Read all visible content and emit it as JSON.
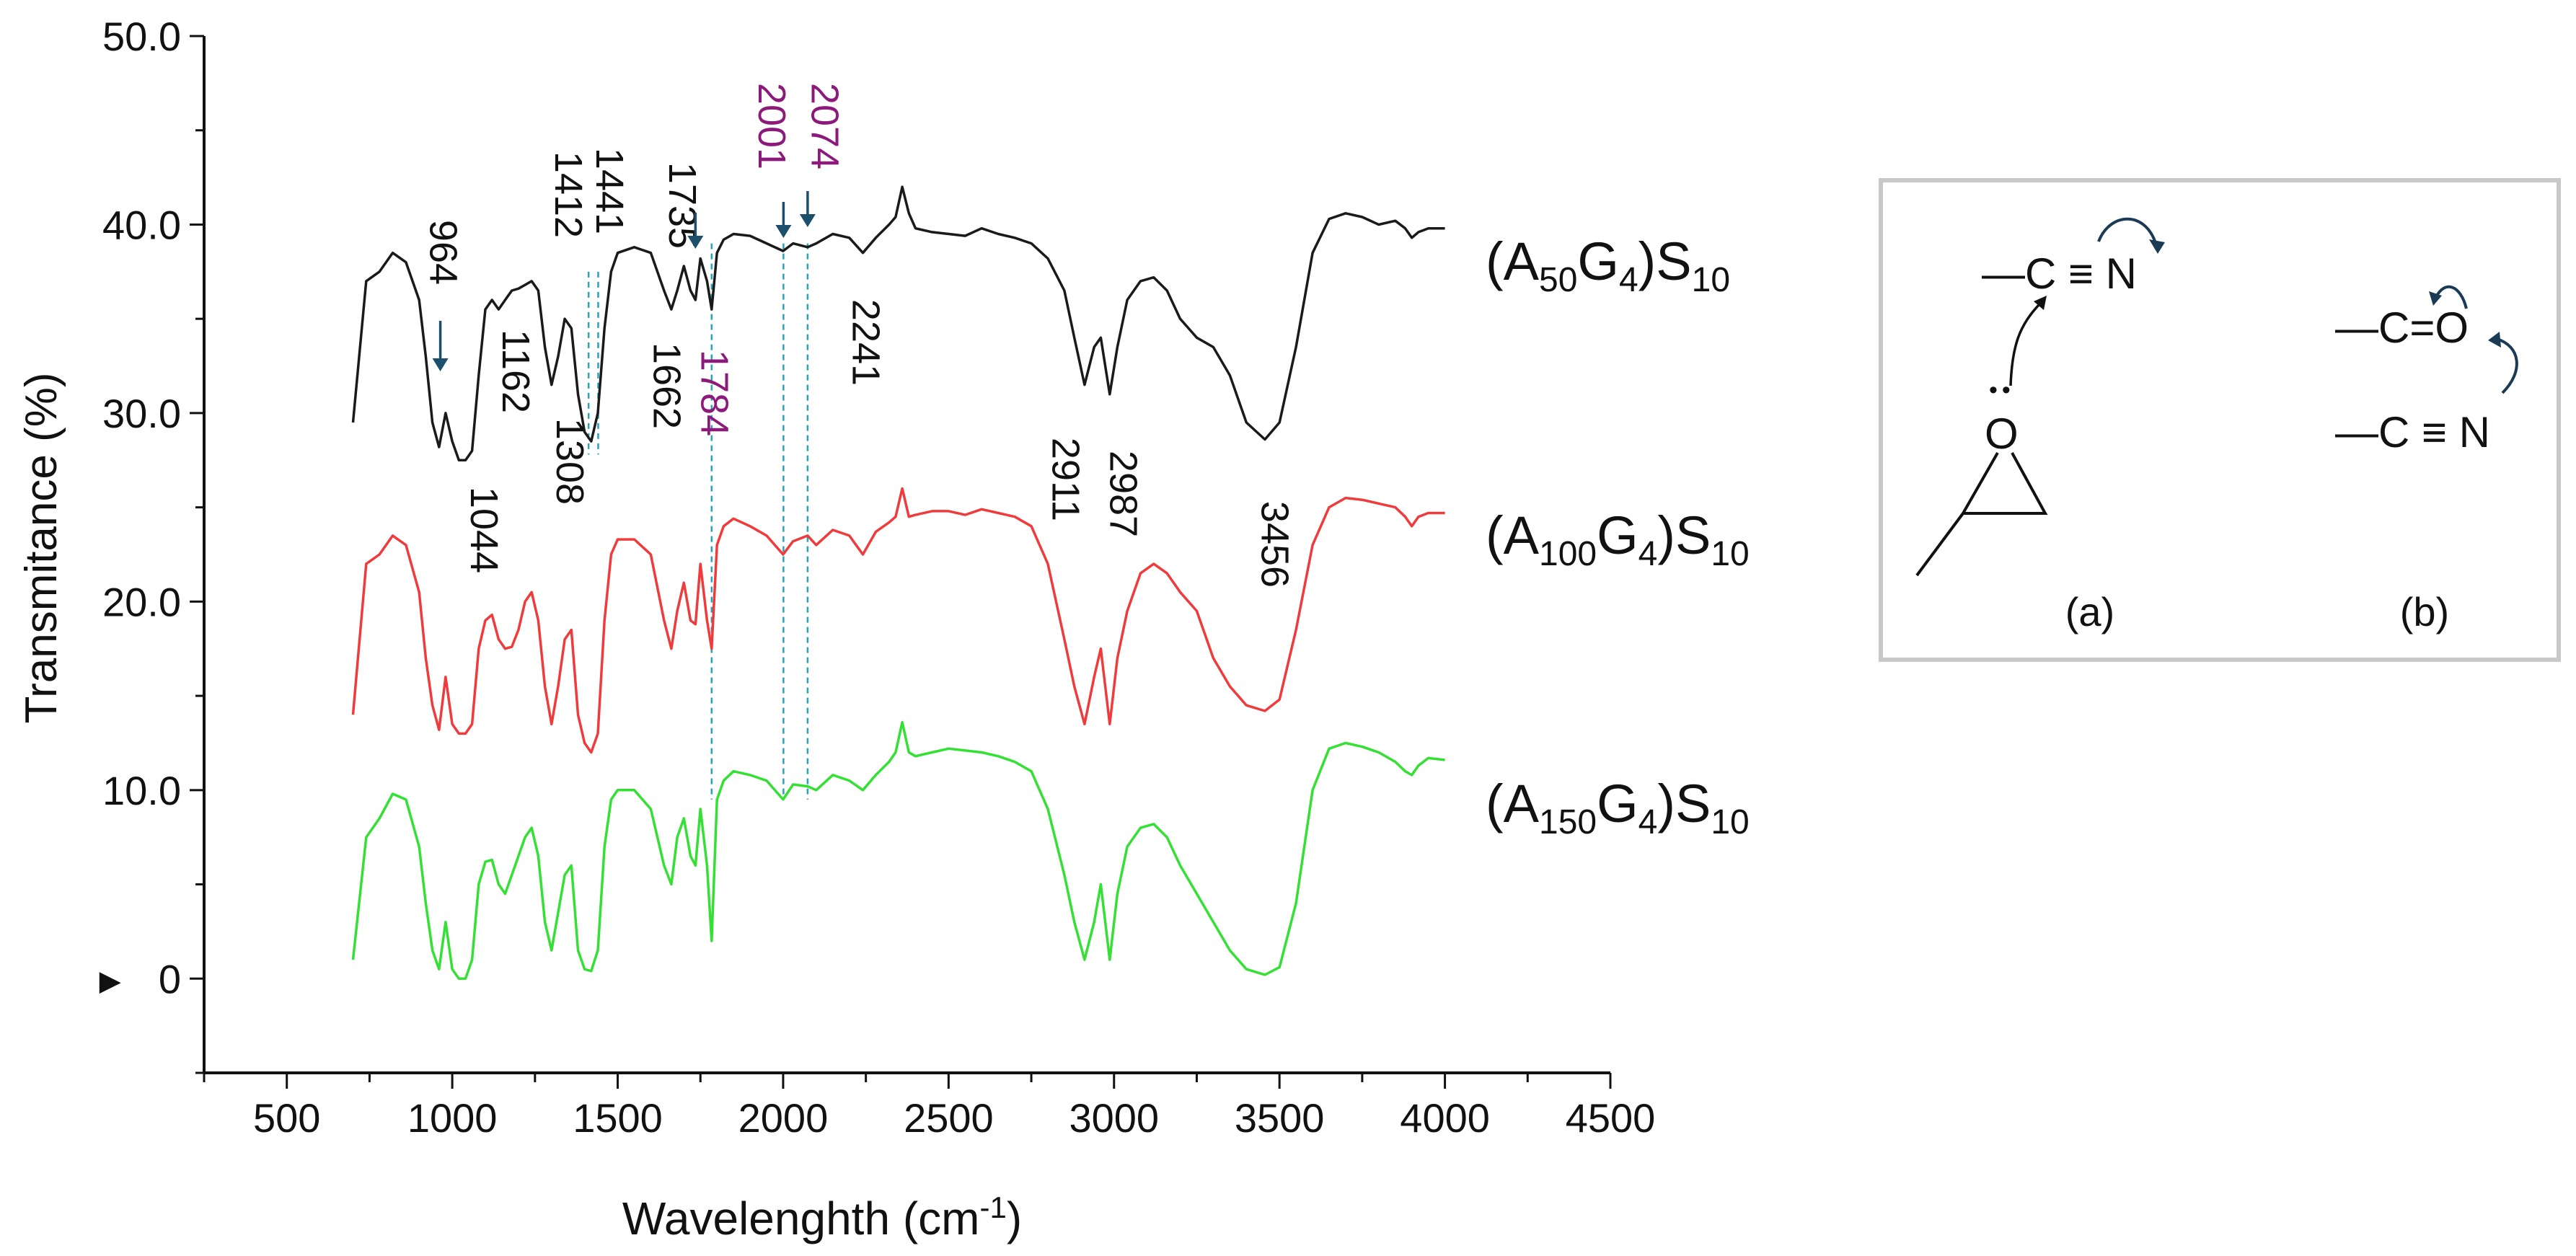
{
  "chart_data": {
    "type": "line",
    "title": "",
    "xlabel": "Wavelenghth (cm",
    "xlabel_sup": "-1",
    "xlabel_close": ")",
    "ylabel": "Transmitance (%)",
    "xlim": [
      250,
      4500
    ],
    "ylim": [
      -5,
      50
    ],
    "xticks": [
      500,
      1000,
      1500,
      2000,
      2500,
      3000,
      3500,
      4000,
      4500
    ],
    "yticks": [
      {
        "value": 50,
        "label": "50.0"
      },
      {
        "value": 40,
        "label": "40.0"
      },
      {
        "value": 30,
        "label": "30.0"
      },
      {
        "value": 20,
        "label": "20.0"
      },
      {
        "value": 10,
        "label": "10.0"
      },
      {
        "value": 0,
        "label": "0"
      }
    ],
    "zero_marker": "►",
    "x": [
      700,
      740,
      780,
      820,
      860,
      900,
      920,
      940,
      960,
      980,
      1000,
      1020,
      1040,
      1060,
      1080,
      1100,
      1120,
      1140,
      1160,
      1180,
      1200,
      1220,
      1240,
      1260,
      1280,
      1300,
      1320,
      1340,
      1360,
      1380,
      1400,
      1420,
      1440,
      1460,
      1480,
      1500,
      1550,
      1600,
      1640,
      1662,
      1680,
      1700,
      1720,
      1735,
      1750,
      1770,
      1784,
      1800,
      1820,
      1850,
      1900,
      1950,
      2000,
      2030,
      2074,
      2100,
      2150,
      2200,
      2241,
      2280,
      2320,
      2340,
      2360,
      2380,
      2400,
      2450,
      2500,
      2550,
      2600,
      2650,
      2700,
      2750,
      2800,
      2850,
      2880,
      2911,
      2940,
      2960,
      2987,
      3010,
      3040,
      3080,
      3120,
      3160,
      3200,
      3250,
      3300,
      3350,
      3400,
      3456,
      3500,
      3550,
      3600,
      3650,
      3700,
      3750,
      3800,
      3850,
      3880,
      3900,
      3920,
      3950,
      4000
    ],
    "series": [
      {
        "name": "(A50G4)S10",
        "label_main": "(A",
        "label_sub1": "50",
        "label_mid": "G",
        "label_sub2": "4",
        "label_close": ")S",
        "label_sub3": "10",
        "color": "#1a1a1a",
        "values": [
          29.5,
          37.0,
          37.5,
          38.5,
          38.0,
          36.0,
          33.0,
          29.5,
          28.2,
          30.0,
          28.5,
          27.5,
          27.5,
          28.0,
          32.0,
          35.5,
          36.0,
          35.5,
          36.0,
          36.5,
          36.6,
          36.8,
          37.0,
          36.5,
          33.5,
          31.5,
          33.0,
          35.0,
          34.5,
          31.0,
          29.0,
          28.5,
          30.0,
          34.5,
          37.5,
          38.5,
          38.8,
          38.5,
          36.5,
          35.5,
          36.5,
          37.8,
          36.5,
          36.0,
          38.2,
          37.0,
          35.5,
          38.5,
          39.2,
          39.5,
          39.4,
          39.0,
          38.6,
          39.0,
          38.8,
          39.0,
          39.5,
          39.3,
          38.5,
          39.3,
          40.0,
          40.4,
          42.0,
          40.6,
          39.8,
          39.6,
          39.5,
          39.4,
          39.8,
          39.5,
          39.3,
          39.0,
          38.2,
          36.5,
          34.0,
          31.5,
          33.5,
          34.0,
          31.0,
          33.5,
          36.0,
          37.0,
          37.2,
          36.5,
          35.0,
          34.0,
          33.5,
          32.0,
          29.5,
          28.6,
          29.5,
          33.5,
          38.5,
          40.3,
          40.6,
          40.4,
          40.0,
          40.2,
          39.8,
          39.3,
          39.6,
          39.8,
          39.8
        ]
      },
      {
        "name": "(A100G4)S10",
        "label_main": "(A",
        "label_sub1": "100",
        "label_mid": "G",
        "label_sub2": "4",
        "label_close": ")S",
        "label_sub3": "10",
        "color": "#ef3b3b",
        "values": [
          14.0,
          22.0,
          22.5,
          23.5,
          23.0,
          20.5,
          17.0,
          14.5,
          13.2,
          16.0,
          13.5,
          13.0,
          13.0,
          13.5,
          17.5,
          19.0,
          19.3,
          18.0,
          17.5,
          17.6,
          18.5,
          20.0,
          20.5,
          19.0,
          15.5,
          13.5,
          15.5,
          18.0,
          18.5,
          14.0,
          12.5,
          12.0,
          13.0,
          19.0,
          22.5,
          23.3,
          23.3,
          22.5,
          19.0,
          17.5,
          19.5,
          21.0,
          19.0,
          18.8,
          22.0,
          19.0,
          17.5,
          23.0,
          24.0,
          24.4,
          24.0,
          23.5,
          22.5,
          23.2,
          23.5,
          23.0,
          23.8,
          23.5,
          22.5,
          23.7,
          24.2,
          24.5,
          26.0,
          24.5,
          24.6,
          24.8,
          24.8,
          24.6,
          24.9,
          24.7,
          24.5,
          24.0,
          22.0,
          18.0,
          15.5,
          13.5,
          16.0,
          17.5,
          13.5,
          17.0,
          19.5,
          21.5,
          22.0,
          21.5,
          20.5,
          19.5,
          17.0,
          15.5,
          14.5,
          14.2,
          14.8,
          18.5,
          23.0,
          25.0,
          25.5,
          25.4,
          25.2,
          25.0,
          24.5,
          24.0,
          24.5,
          24.7,
          24.7
        ]
      },
      {
        "name": "(A150G4)S10",
        "label_main": "(A",
        "label_sub1": "150",
        "label_mid": "G",
        "label_sub2": "4",
        "label_close": ")S",
        "label_sub3": "10",
        "color": "#35e035",
        "values": [
          1.0,
          7.5,
          8.5,
          9.8,
          9.5,
          7.0,
          4.0,
          1.5,
          0.5,
          3.0,
          0.5,
          0.0,
          0.0,
          1.0,
          5.0,
          6.2,
          6.3,
          5.0,
          4.5,
          5.5,
          6.5,
          7.5,
          8.0,
          6.5,
          3.0,
          1.5,
          3.5,
          5.5,
          6.0,
          1.5,
          0.5,
          0.4,
          1.5,
          7.0,
          9.5,
          10.0,
          10.0,
          9.0,
          6.0,
          5.0,
          7.5,
          8.5,
          6.5,
          6.0,
          9.0,
          6.0,
          2.0,
          9.5,
          10.5,
          11.0,
          10.8,
          10.5,
          9.5,
          10.3,
          10.2,
          10.0,
          10.8,
          10.5,
          10.0,
          10.8,
          11.5,
          12.0,
          13.6,
          12.0,
          11.8,
          12.0,
          12.2,
          12.1,
          12.0,
          11.8,
          11.5,
          11.0,
          9.0,
          5.5,
          3.0,
          1.0,
          3.0,
          5.0,
          1.0,
          4.5,
          7.0,
          8.0,
          8.2,
          7.5,
          6.0,
          4.5,
          3.0,
          1.5,
          0.5,
          0.2,
          0.6,
          4.0,
          10.0,
          12.2,
          12.5,
          12.3,
          12.0,
          11.5,
          11.0,
          10.8,
          11.3,
          11.7,
          11.6
        ]
      }
    ],
    "annotations": [
      {
        "text": "964",
        "x": 964,
        "color": "#111111",
        "arrow": true
      },
      {
        "text": "1044",
        "x": 1044,
        "color": "#111111",
        "arrow": false
      },
      {
        "text": "1162",
        "x": 1162,
        "color": "#111111",
        "arrow": false
      },
      {
        "text": "1308",
        "x": 1308,
        "color": "#111111",
        "arrow": false
      },
      {
        "text": "1412",
        "x": 1412,
        "color": "#111111",
        "arrow": false
      },
      {
        "text": "1441",
        "x": 1441,
        "color": "#111111",
        "arrow": false
      },
      {
        "text": "1662",
        "x": 1662,
        "color": "#111111",
        "arrow": false
      },
      {
        "text": "1735",
        "x": 1735,
        "color": "#111111",
        "arrow": true
      },
      {
        "text": "1784",
        "x": 1784,
        "color": "#8b1a7a",
        "arrow": false
      },
      {
        "text": "2001",
        "x": 2001,
        "color": "#8b1a7a",
        "arrow": true
      },
      {
        "text": "2074",
        "x": 2074,
        "color": "#8b1a7a",
        "arrow": true
      },
      {
        "text": "2241",
        "x": 2241,
        "color": "#111111",
        "arrow": false
      },
      {
        "text": "2911",
        "x": 2911,
        "color": "#111111",
        "arrow": false
      },
      {
        "text": "2987",
        "x": 2987,
        "color": "#111111",
        "arrow": false
      },
      {
        "text": "3456",
        "x": 3456,
        "color": "#111111",
        "arrow": false
      }
    ],
    "guide_lines": [
      {
        "x": 1412,
        "color": "#2aa3b8"
      },
      {
        "x": 1441,
        "color": "#2aa3b8"
      },
      {
        "x": 1784,
        "color": "#2aa3b8"
      },
      {
        "x": 2001,
        "color": "#2aa3b8"
      },
      {
        "x": 2074,
        "color": "#2aa3b8"
      }
    ],
    "arrow_color": "#1b4f6b"
  },
  "inset": {
    "panel_a_label": "(a)",
    "panel_b_label": "(b)",
    "nitrile_text": "—C ≡ N",
    "carbonyl_text": "—C=O",
    "oxygen_text": "O",
    "lone_pair": "••"
  }
}
